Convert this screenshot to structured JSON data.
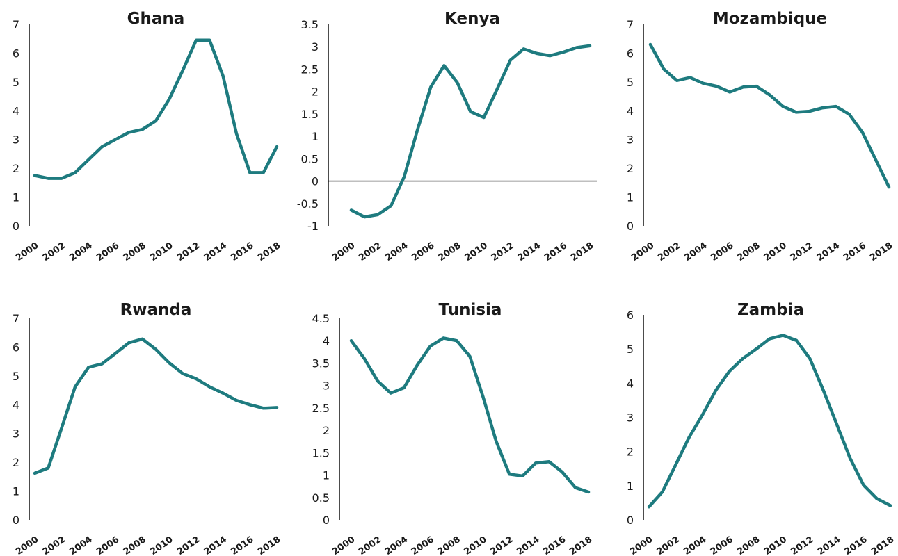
{
  "colors": {
    "series": "#1e7b7f"
  },
  "chart_data": [
    {
      "type": "line",
      "title": "Ghana",
      "x": [
        2000,
        2001,
        2002,
        2003,
        2004,
        2005,
        2006,
        2007,
        2008,
        2009,
        2010,
        2011,
        2012,
        2013,
        2014,
        2015,
        2016,
        2017,
        2018
      ],
      "x_ticks": [
        "2000",
        "2002",
        "2004",
        "2006",
        "2008",
        "2010",
        "2012",
        "2014",
        "2016",
        "2018"
      ],
      "y_ticks": [
        "0",
        "1",
        "2",
        "3",
        "4",
        "5",
        "6",
        "7"
      ],
      "ylim": [
        0,
        7
      ],
      "series": [
        {
          "values": [
            1.75,
            1.65,
            1.65,
            1.85,
            2.3,
            2.75,
            3.0,
            3.25,
            3.35,
            3.65,
            4.4,
            5.4,
            6.45,
            6.45,
            5.2,
            3.2,
            1.85,
            1.85,
            2.75
          ]
        }
      ]
    },
    {
      "type": "line",
      "title": "Kenya",
      "x": [
        2000,
        2001,
        2002,
        2003,
        2004,
        2005,
        2006,
        2007,
        2008,
        2009,
        2010,
        2011,
        2012,
        2013,
        2014,
        2015,
        2016,
        2017,
        2018
      ],
      "x_ticks": [
        "2000",
        "2002",
        "2004",
        "2006",
        "2008",
        "2010",
        "2012",
        "2014",
        "2016",
        "2018"
      ],
      "y_ticks": [
        "-1",
        "-0.5",
        "0",
        "0.5",
        "1",
        "1.5",
        "2",
        "2.5",
        "3",
        "3.5"
      ],
      "ylim": [
        -1,
        3.5
      ],
      "zero_line": true,
      "series": [
        {
          "values": [
            -0.65,
            -0.8,
            -0.75,
            -0.55,
            0.1,
            1.15,
            2.1,
            2.58,
            2.2,
            1.55,
            1.42,
            2.05,
            2.7,
            2.95,
            2.85,
            2.8,
            2.88,
            2.98,
            3.02
          ]
        }
      ]
    },
    {
      "type": "line",
      "title": "Mozambique",
      "x": [
        2000,
        2001,
        2002,
        2003,
        2004,
        2005,
        2006,
        2007,
        2008,
        2009,
        2010,
        2011,
        2012,
        2013,
        2014,
        2015,
        2016,
        2017,
        2018
      ],
      "x_ticks": [
        "2000",
        "2002",
        "2004",
        "2006",
        "2008",
        "2010",
        "2012",
        "2014",
        "2016",
        "2018"
      ],
      "y_ticks": [
        "0",
        "1",
        "2",
        "3",
        "4",
        "5",
        "6",
        "7"
      ],
      "ylim": [
        0,
        7
      ],
      "series": [
        {
          "values": [
            6.3,
            5.45,
            5.05,
            5.15,
            4.95,
            4.85,
            4.65,
            4.82,
            4.85,
            4.55,
            4.15,
            3.95,
            3.98,
            4.1,
            4.15,
            3.88,
            3.25,
            2.3,
            1.35
          ]
        }
      ]
    },
    {
      "type": "line",
      "title": "Rwanda",
      "x": [
        2000,
        2001,
        2002,
        2003,
        2004,
        2005,
        2006,
        2007,
        2008,
        2009,
        2010,
        2011,
        2012,
        2013,
        2014,
        2015,
        2016,
        2017,
        2018
      ],
      "x_ticks": [
        "2000",
        "2002",
        "2004",
        "2006",
        "2008",
        "2010",
        "2012",
        "2014",
        "2016",
        "2018"
      ],
      "y_ticks": [
        "0",
        "1",
        "2",
        "3",
        "4",
        "5",
        "6",
        "7"
      ],
      "ylim": [
        0,
        7
      ],
      "series": [
        {
          "values": [
            1.62,
            1.8,
            3.2,
            4.62,
            5.3,
            5.42,
            5.78,
            6.15,
            6.28,
            5.92,
            5.45,
            5.08,
            4.9,
            4.62,
            4.4,
            4.15,
            4.0,
            3.88,
            3.9
          ]
        }
      ]
    },
    {
      "type": "line",
      "title": "Tunisia",
      "x": [
        2000,
        2001,
        2002,
        2003,
        2004,
        2005,
        2006,
        2007,
        2008,
        2009,
        2010,
        2011,
        2012,
        2013,
        2014,
        2015,
        2016,
        2017,
        2018
      ],
      "x_ticks": [
        "2000",
        "2002",
        "2004",
        "2006",
        "2008",
        "2010",
        "2012",
        "2014",
        "2016",
        "2018"
      ],
      "y_ticks": [
        "0",
        "0.5",
        "1",
        "1.5",
        "2",
        "2.5",
        "3",
        "3.5",
        "4",
        "4.5"
      ],
      "ylim": [
        0,
        4.5
      ],
      "series": [
        {
          "values": [
            4.0,
            3.6,
            3.1,
            2.83,
            2.95,
            3.45,
            3.88,
            4.06,
            4.0,
            3.65,
            2.75,
            1.75,
            1.02,
            0.98,
            1.27,
            1.3,
            1.07,
            0.72,
            0.62
          ]
        }
      ]
    },
    {
      "type": "line",
      "title": "Zambia",
      "x": [
        2000,
        2001,
        2002,
        2003,
        2004,
        2005,
        2006,
        2007,
        2008,
        2009,
        2010,
        2011,
        2012,
        2013,
        2014,
        2015,
        2016,
        2017,
        2018
      ],
      "x_ticks": [
        "2000",
        "2002",
        "2004",
        "2006",
        "2008",
        "2010",
        "2012",
        "2014",
        "2016",
        "2018"
      ],
      "y_ticks": [
        "0",
        "1",
        "2",
        "3",
        "4",
        "5",
        "6"
      ],
      "ylim": [
        0,
        6
      ],
      "series": [
        {
          "values": [
            0.38,
            0.82,
            1.62,
            2.42,
            3.08,
            3.8,
            4.35,
            4.72,
            5.0,
            5.3,
            5.4,
            5.25,
            4.72,
            3.8,
            2.8,
            1.8,
            1.02,
            0.62,
            0.42
          ]
        }
      ]
    }
  ]
}
